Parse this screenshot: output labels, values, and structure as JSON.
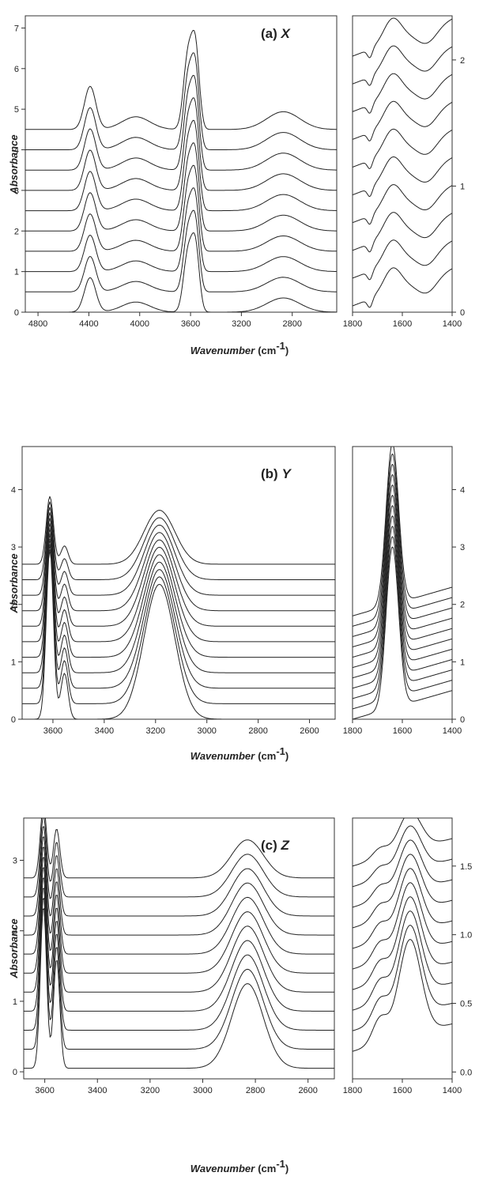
{
  "chart_data": [
    {
      "type": "line",
      "panel_label": "(a) ",
      "panel_letter": "X",
      "ylabel": "Absorbance",
      "xlabel": "Wavenumber",
      "xlabel_unit": "(cm",
      "xlabel_unit_exp": "-1",
      "xlabel_unit_close": ")",
      "left": {
        "xlim": [
          4900,
          2450
        ],
        "ylim": [
          0,
          7.3
        ],
        "xticks": [
          4800,
          4400,
          4000,
          3600,
          3200,
          2800
        ],
        "yticks": [
          0,
          1,
          2,
          3,
          4,
          5,
          6,
          7
        ],
        "series_offsets": [
          0,
          0.5,
          1.0,
          1.5,
          2.0,
          2.5,
          3.0,
          3.5,
          4.0,
          4.5
        ],
        "peaks": [
          {
            "center": 4390,
            "width": 45,
            "height": 0.85
          },
          {
            "center": 4030,
            "width": 110,
            "height": 0.25
          },
          {
            "center": 3620,
            "width": 35,
            "height": 1.45
          },
          {
            "center": 3560,
            "width": 30,
            "height": 1.5
          },
          {
            "center": 2870,
            "width": 130,
            "height": 0.35
          }
        ],
        "peak_growth": 0.25
      },
      "right": {
        "xlim": [
          1800,
          1400
        ],
        "ylim": [
          0,
          2.35
        ],
        "xticks": [
          1800,
          1600,
          1400
        ],
        "yticks": [
          0,
          1,
          2
        ],
        "series_offsets": [
          0.05,
          0.27,
          0.49,
          0.71,
          0.93,
          1.15,
          1.37,
          1.59,
          1.81,
          2.03
        ],
        "slope": 0.3,
        "peaks": [
          {
            "center": 1640,
            "width": 35,
            "height": 0.18
          },
          {
            "center": 1730,
            "width": 10,
            "height": -0.07
          },
          {
            "center": 1500,
            "width": 40,
            "height": -0.12
          }
        ],
        "peak_growth": 0
      }
    },
    {
      "type": "line",
      "panel_label": "(b) ",
      "panel_letter": "Y",
      "ylabel": "Absorbance",
      "xlabel": "Wavenumber",
      "xlabel_unit": "(cm",
      "xlabel_unit_exp": "-1",
      "xlabel_unit_close": ")",
      "left": {
        "xlim": [
          3720,
          2500
        ],
        "ylim": [
          0,
          4.75
        ],
        "xticks": [
          3600,
          3400,
          3200,
          3000,
          2800,
          2600
        ],
        "yticks": [
          0,
          1,
          2,
          3,
          4
        ],
        "series_offsets": [
          0,
          0.27,
          0.54,
          0.81,
          1.08,
          1.35,
          1.62,
          1.89,
          2.16,
          2.43,
          2.7
        ],
        "peaks": [
          {
            "center": 3612,
            "width": 14,
            "height": 2.95
          },
          {
            "center": 3555,
            "width": 14,
            "height": 0.8
          },
          {
            "center": 3185,
            "width": 60,
            "height": 2.35
          }
        ],
        "peak_growth": -0.6
      },
      "right": {
        "xlim": [
          1800,
          1400
        ],
        "ylim": [
          0,
          4.75
        ],
        "xticks": [
          1800,
          1600,
          1400
        ],
        "yticks": [
          0,
          1,
          2,
          3,
          4
        ],
        "series_offsets": [
          0,
          0.18,
          0.36,
          0.54,
          0.72,
          0.9,
          1.08,
          1.26,
          1.44,
          1.62,
          1.8
        ],
        "slope": 0.5,
        "peaks": [
          {
            "center": 1640,
            "width": 25,
            "height": 2.8
          }
        ],
        "peak_growth": 0
      }
    },
    {
      "type": "line",
      "panel_label": "(c) ",
      "panel_letter": "Z",
      "ylabel": "Absorbance",
      "xlabel": "Wavenumber",
      "xlabel_unit": "(cm",
      "xlabel_unit_exp": "-1",
      "xlabel_unit_close": ")",
      "left": {
        "xlim": [
          3680,
          2500
        ],
        "ylim": [
          -0.1,
          3.6
        ],
        "xticks": [
          3600,
          3400,
          3200,
          3000,
          2800,
          2600
        ],
        "yticks": [
          0,
          1,
          2,
          3
        ],
        "series_offsets": [
          0.05,
          0.32,
          0.59,
          0.86,
          1.13,
          1.4,
          1.67,
          1.94,
          2.21,
          2.48,
          2.75
        ],
        "peaks": [
          {
            "center": 3605,
            "width": 12,
            "height": 2.3
          },
          {
            "center": 3555,
            "width": 12,
            "height": 1.55
          },
          {
            "center": 2830,
            "width": 60,
            "height": 1.2
          }
        ],
        "peak_growth": -0.55
      },
      "right": {
        "xlim": [
          1800,
          1400
        ],
        "ylim": [
          -0.05,
          1.85
        ],
        "xticks": [
          1800,
          1600,
          1400
        ],
        "yticks": [
          0,
          0.5,
          1,
          1.5
        ],
        "ytick_labels": [
          "0.0",
          "0.5",
          "1.0",
          "1.5"
        ],
        "series_offsets": [
          0.15,
          0.3,
          0.45,
          0.6,
          0.75,
          0.9,
          1.05,
          1.2,
          1.35,
          1.5
        ],
        "slope": 0.2,
        "peaks": [
          {
            "center": 1690,
            "width": 30,
            "height": 0.18
          },
          {
            "center": 1570,
            "width": 45,
            "height": 0.7
          }
        ],
        "peak_growth": -0.6
      }
    }
  ]
}
